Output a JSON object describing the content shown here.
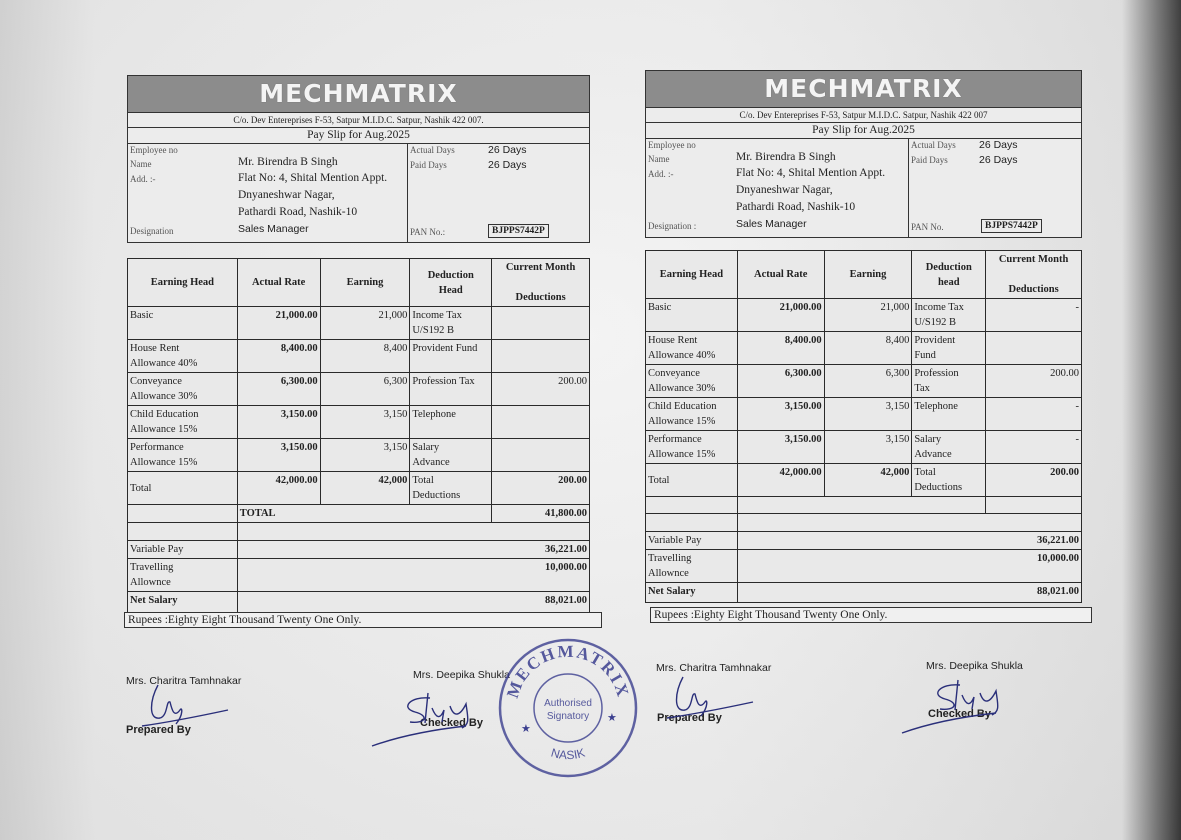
{
  "slips": [
    {
      "company": "MECHMATRIX",
      "address": "C/o. Dev Entereprises F-53, Satpur M.I.D.C. Satpur, Nashik 422 007.",
      "title": "Pay Slip for Aug.2025",
      "employee_no_label": "Employee no",
      "name_label": "Name",
      "name": "Mr. Birendra B Singh",
      "address_label": "Add. :-",
      "address_lines": [
        "Flat No: 4, Shital Mention Appt.",
        "Dnyaneshwar Nagar,",
        "Pathardi Road, Nashik-10"
      ],
      "designation_label": "Designation",
      "designation": "Sales Manager",
      "actual_days_label": "Actual Days",
      "actual_days": "26 Days",
      "paid_days_label": "Paid Days",
      "paid_days": "26 Days",
      "pan_label": "PAN No.:",
      "pan": "BJPPS7442P",
      "headers": [
        "Earning Head",
        "Actual Rate",
        "Earning",
        "Deduction\nHead",
        "Current Month\n\nDeductions"
      ],
      "rows": [
        {
          "earning_head": "Basic",
          "actual_rate": "21,000.00",
          "earning": "21,000",
          "deduction_head": "Income Tax\nU/S192 B",
          "deduction": ""
        },
        {
          "earning_head": "House Rent\nAllowance 40%",
          "actual_rate": "8,400.00",
          "earning": "8,400",
          "deduction_head": "Provident Fund",
          "deduction": ""
        },
        {
          "earning_head": "Conveyance\nAllowance 30%",
          "actual_rate": "6,300.00",
          "earning": "6,300",
          "deduction_head": "Profession Tax",
          "deduction": "200.00"
        },
        {
          "earning_head": "Child Education\nAllowance 15%",
          "actual_rate": "3,150.00",
          "earning": "3,150",
          "deduction_head": "Telephone",
          "deduction": ""
        },
        {
          "earning_head": "Performance\nAllowance 15%",
          "actual_rate": "3,150.00",
          "earning": "3,150",
          "deduction_head": "Salary\nAdvance",
          "deduction": ""
        }
      ],
      "total": {
        "label": "Total",
        "actual_rate": "42,000.00",
        "earning": "42,000",
        "deduction_head": "Total\nDeductions",
        "deduction": "200.00"
      },
      "grand_total_label": "TOTAL",
      "grand_total": "41,800.00",
      "variable_pay_label": "Variable Pay",
      "variable_pay": "36,221.00",
      "travelling_label": "Travelling\nAllownce",
      "travelling": "10,000.00",
      "net_salary_label": "Net Salary",
      "net_salary": "88,021.00",
      "rupees": "Rupees :Eighty Eight Thousand Twenty One Only.",
      "prepared_by_name": "Mrs. Charitra Tamhnakar",
      "prepared_by_label": "Prepared By",
      "checked_by_name": "Mrs. Deepika Shukla",
      "checked_by_label": "Checked By"
    },
    {
      "company": "MECHMATRIX",
      "address": "C/o. Dev Entereprises F-53, Satpur M.I.D.C. Satpur, Nashik 422 007",
      "title": "Pay Slip for Aug.2025",
      "employee_no_label": "Employee no",
      "name_label": "Name",
      "name": "Mr. Birendra B Singh",
      "address_label": "Add. :-",
      "address_lines": [
        "Flat No: 4, Shital Mention Appt.",
        "Dnyaneshwar Nagar,",
        "Pathardi Road, Nashik-10"
      ],
      "designation_label": "Designation :",
      "designation": "Sales Manager",
      "actual_days_label": "Actual Days",
      "actual_days": "26 Days",
      "paid_days_label": "Paid Days",
      "paid_days": "26 Days",
      "pan_label": "PAN No.",
      "pan": "BJPPS7442P",
      "headers": [
        "Earning Head",
        "Actual Rate",
        "Earning",
        "Deduction\nhead",
        "Current Month\n\nDeductions"
      ],
      "rows": [
        {
          "earning_head": "Basic",
          "actual_rate": "21,000.00",
          "earning": "21,000",
          "deduction_head": "Income Tax\nU/S192 B",
          "deduction": "-"
        },
        {
          "earning_head": "House Rent\nAllowance 40%",
          "actual_rate": "8,400.00",
          "earning": "8,400",
          "deduction_head": "Provident\nFund",
          "deduction": ""
        },
        {
          "earning_head": "Conveyance\nAllowance 30%",
          "actual_rate": "6,300.00",
          "earning": "6,300",
          "deduction_head": "Profession\nTax",
          "deduction": "200.00"
        },
        {
          "earning_head": "Child Education\nAllowance 15%",
          "actual_rate": "3,150.00",
          "earning": "3,150",
          "deduction_head": "Telephone",
          "deduction": "-"
        },
        {
          "earning_head": "Performance\nAllowance 15%",
          "actual_rate": "3,150.00",
          "earning": "3,150",
          "deduction_head": "Salary\nAdvance",
          "deduction": "-"
        }
      ],
      "total": {
        "label": "Total",
        "actual_rate": "42,000.00",
        "earning": "42,000",
        "deduction_head": "Total\nDeductions",
        "deduction": "200.00"
      },
      "grand_total_label": "",
      "grand_total": "",
      "variable_pay_label": "Variable Pay",
      "variable_pay": "36,221.00",
      "travelling_label": "Travelling\nAllownce",
      "travelling": "10,000.00",
      "net_salary_label": "Net Salary",
      "net_salary": "88,021.00",
      "rupees": "Rupees :Eighty Eight Thousand Twenty One Only.",
      "prepared_by_name": "Mrs. Charitra Tamhnakar",
      "prepared_by_label": "Prepared By",
      "checked_by_name": "Mrs. Deepika Shukla",
      "checked_by_label": "Checked By"
    }
  ],
  "stamp": {
    "top": "MECHMATRIX",
    "center": "Authorised\nSignatory",
    "bottom": "NASIK"
  },
  "colors": {
    "header_bar": "#8c8c8c",
    "paper": "#efefef",
    "stamp_ink": "#3b3f8f",
    "signature_ink": "#2a2f7a"
  }
}
